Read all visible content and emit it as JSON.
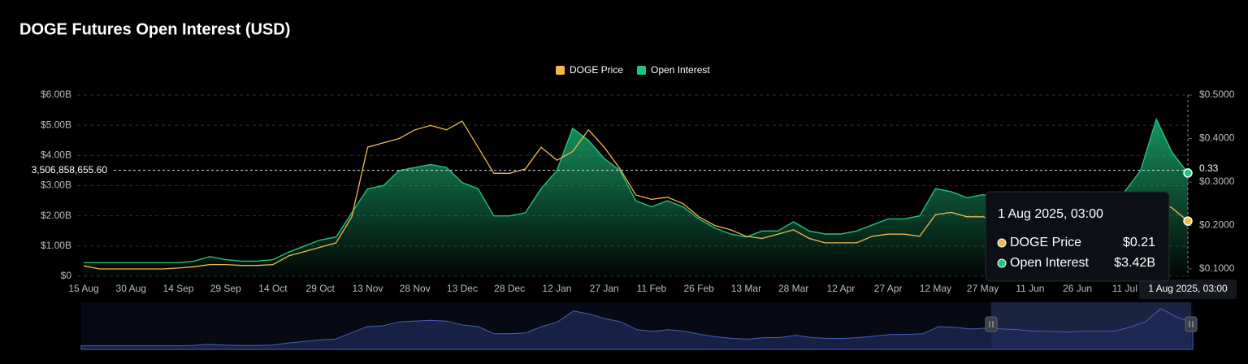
{
  "chart_data": {
    "type": "line-area",
    "title": "DOGE Futures Open Interest (USD)",
    "categories": [
      "15 Aug",
      null,
      null,
      "30 Aug",
      null,
      null,
      "14 Sep",
      null,
      null,
      "29 Sep",
      null,
      null,
      "14 Oct",
      null,
      null,
      "29 Oct",
      null,
      null,
      "13 Nov",
      null,
      null,
      "28 Nov",
      null,
      null,
      "13 Dec",
      null,
      null,
      "28 Dec",
      null,
      null,
      "12 Jan",
      null,
      null,
      "27 Jan",
      null,
      null,
      "11 Feb",
      null,
      null,
      "26 Feb",
      null,
      null,
      "13 Mar",
      null,
      null,
      "28 Mar",
      null,
      null,
      "12 Apr",
      null,
      null,
      "27 Apr",
      null,
      null,
      "12 May",
      null,
      null,
      "27 May",
      null,
      null,
      "11 Jun",
      null,
      null,
      "26 Jun",
      null,
      null,
      "11 Jul",
      null,
      null,
      null,
      "1 Aug 2025, 03:00"
    ],
    "series": [
      {
        "name": "DOGE Price",
        "color": "#f0b94d",
        "axis": "y2",
        "values": [
          0.107,
          0.1,
          0.1,
          0.1,
          0.1,
          0.1,
          0.102,
          0.105,
          0.11,
          0.11,
          0.108,
          0.108,
          0.11,
          0.13,
          0.14,
          0.15,
          0.16,
          0.22,
          0.38,
          0.39,
          0.4,
          0.42,
          0.43,
          0.42,
          0.44,
          0.38,
          0.32,
          0.32,
          0.33,
          0.38,
          0.35,
          0.37,
          0.42,
          0.38,
          0.33,
          0.27,
          0.26,
          0.265,
          0.25,
          0.22,
          0.2,
          0.19,
          0.175,
          0.17,
          0.18,
          0.19,
          0.17,
          0.16,
          0.16,
          0.16,
          0.175,
          0.18,
          0.18,
          0.175,
          0.225,
          0.23,
          0.22,
          0.22,
          0.21,
          0.19,
          0.18,
          0.17,
          0.16,
          0.16,
          0.16,
          0.17,
          0.19,
          0.22,
          0.26,
          0.24,
          0.21
        ]
      },
      {
        "name": "Open Interest",
        "color": "#1fc47e",
        "values": [
          450000000,
          450000000,
          450000000,
          450000000,
          450000000,
          450000000,
          450000000,
          500000000,
          650000000,
          550000000,
          500000000,
          500000000,
          550000000,
          800000000,
          1000000000,
          1200000000,
          1300000000,
          2100000000,
          2900000000,
          3000000000,
          3500000000,
          3600000000,
          3700000000,
          3600000000,
          3100000000,
          2900000000,
          2000000000,
          2000000000,
          2100000000,
          2900000000,
          3500000000,
          4900000000,
          4500000000,
          3900000000,
          3500000000,
          2500000000,
          2300000000,
          2500000000,
          2300000000,
          1900000000,
          1600000000,
          1400000000,
          1300000000,
          1500000000,
          1500000000,
          1800000000,
          1500000000,
          1400000000,
          1400000000,
          1500000000,
          1700000000,
          1900000000,
          1900000000,
          2000000000,
          2900000000,
          2800000000,
          2600000000,
          2700000000,
          2600000000,
          2500000000,
          2300000000,
          2300000000,
          2200000000,
          2300000000,
          2300000000,
          2300000000,
          2800000000,
          3500000000,
          5200000000,
          4100000000,
          3420000000
        ]
      }
    ],
    "ylim": [
      0,
      6000000000
    ],
    "yticks": [
      {
        "value": 0,
        "label": "$0"
      },
      {
        "value": 1000000000,
        "label": "$1.00B"
      },
      {
        "value": 2000000000,
        "label": "$2.00B"
      },
      {
        "value": 3000000000,
        "label": "$3.00B"
      },
      {
        "value": 4000000000,
        "label": "$4.00B"
      },
      {
        "value": 5000000000,
        "label": "$5.00B"
      },
      {
        "value": 6000000000,
        "label": "$6.00B"
      }
    ],
    "y2lim": [
      0.0831,
      0.5
    ],
    "y2ticks": [
      {
        "value": 0.1,
        "label": "$0.1000"
      },
      {
        "value": 0.2,
        "label": "$0.2000"
      },
      {
        "value": 0.3,
        "label": "$0.3000"
      },
      {
        "value": 0.4,
        "label": "$0.4000"
      },
      {
        "value": 0.5,
        "label": "$0.5000"
      }
    ],
    "grid": true,
    "legend": "top",
    "crosshair": {
      "y": {
        "value": 3506858655.6,
        "label": "3,506,858,655.60"
      },
      "y2": {
        "value": 0.33,
        "label": "0.33"
      }
    },
    "tooltip": {
      "values": [
        {
          "value": 0.21,
          "label": "$0.21"
        },
        {
          "value": 3420000000,
          "label": "$3.42B"
        }
      ]
    }
  }
}
